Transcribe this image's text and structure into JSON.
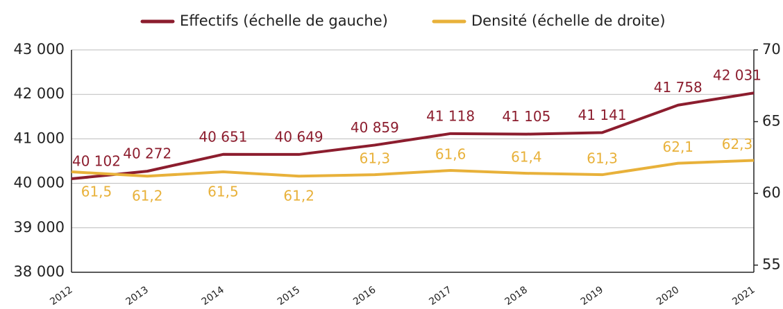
{
  "chart_data": {
    "type": "line",
    "categories": [
      "2012",
      "2013",
      "2014",
      "2015",
      "2016",
      "2017",
      "2018",
      "2019",
      "2020",
      "2021"
    ],
    "series": [
      {
        "name": "Effectifs (échelle de gauche)",
        "color": "#8c1d2e",
        "values": [
          40102,
          40272,
          40651,
          40649,
          40859,
          41118,
          41105,
          41141,
          41758,
          42031
        ],
        "value_labels": [
          "40 102",
          "40 272",
          "40 651",
          "40 649",
          "40 859",
          "41 118",
          "41 105",
          "41 141",
          "41 758",
          "42 031"
        ]
      },
      {
        "name": "Densité (échelle de droite)",
        "color": "#e8b13a",
        "axis": "y2",
        "values": [
          61.5,
          61.2,
          61.5,
          61.2,
          61.3,
          61.6,
          61.4,
          61.3,
          62.1,
          62.3
        ],
        "value_labels": [
          "61,5",
          "61,2",
          "61,5",
          "61,2",
          "61,3",
          "61,6",
          "61,4",
          "61,3",
          "62,1",
          "62,3"
        ]
      }
    ],
    "ylim": [
      38000,
      43000
    ],
    "yticks": [
      {
        "value": 38000,
        "label": "38 000"
      },
      {
        "value": 39000,
        "label": "39 000"
      },
      {
        "value": 40000,
        "label": "40 000"
      },
      {
        "value": 41000,
        "label": "41 000"
      },
      {
        "value": 42000,
        "label": "42 000"
      },
      {
        "value": 43000,
        "label": "43 000"
      }
    ],
    "y2lim": [
      54.5,
      70
    ],
    "y2ticks": [
      55,
      60,
      65,
      70
    ],
    "grid": true,
    "legend": "top"
  }
}
